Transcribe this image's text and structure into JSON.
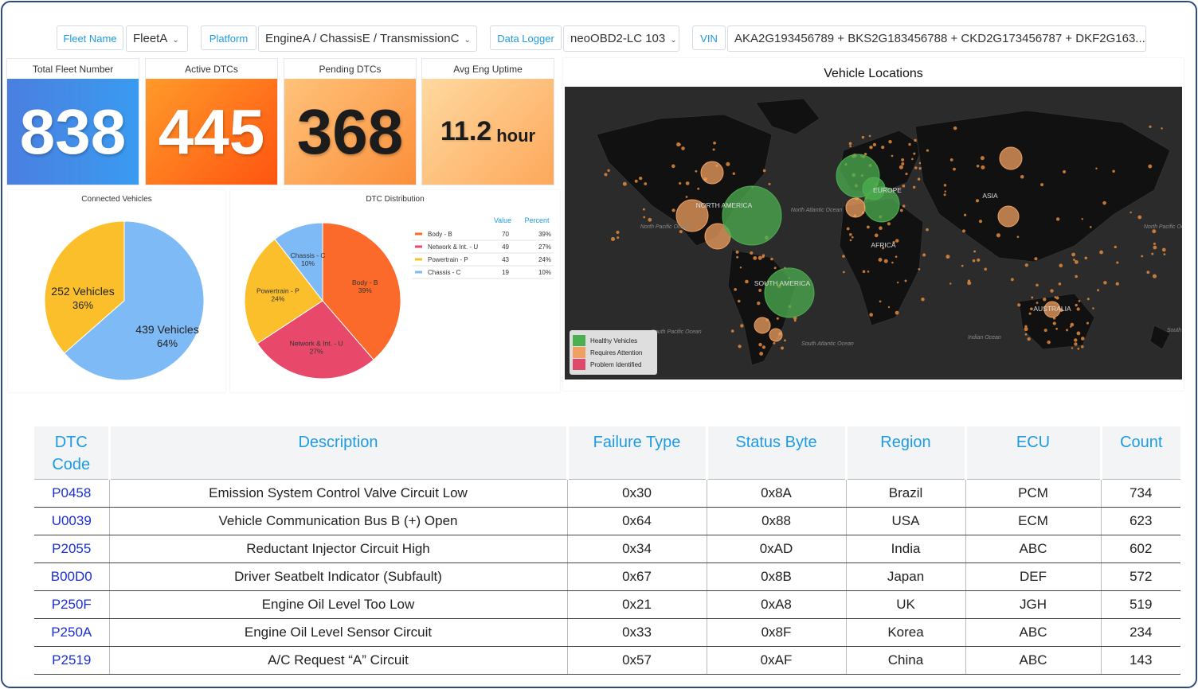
{
  "filters": [
    {
      "label": "Fleet Name",
      "value": "FleetA"
    },
    {
      "label": "Platform",
      "value": "EngineA / ChassisE / TransmissionC"
    },
    {
      "label": "Data Logger",
      "value": "neoOBD2-LC 103"
    },
    {
      "label": "VIN",
      "value": "AKA2G193456789 + BKS2G183456788 + CKD2G173456787 + DKF2G163..."
    }
  ],
  "kpis": {
    "total_fleet": {
      "title": "Total Fleet Number",
      "value": "838"
    },
    "active_dtcs": {
      "title": "Active DTCs",
      "value": "445"
    },
    "pending_dtcs": {
      "title": "Pending DTCs",
      "value": "368"
    },
    "avg_uptime": {
      "title": "Avg Eng Uptime",
      "value": "11.2",
      "unit": "hour"
    }
  },
  "colors": {
    "accent": "#1e9be0",
    "blue_card": "#3c8ce6",
    "orange_card": "#ff6f1a",
    "peach_card": "#fdb56a",
    "light_card": "#ffd08a",
    "healthy": "#4caf50",
    "attention": "#f0a060",
    "problem": "#e04a6a"
  },
  "connected_vehicles": {
    "title": "Connected Vehicles",
    "chart_data": {
      "type": "pie",
      "slices": [
        {
          "label": "252 Vehicles",
          "value": 252,
          "percent": "36%",
          "color": "#fbbf2b"
        },
        {
          "label": "439 Vehicles",
          "value": 439,
          "percent": "64%",
          "color": "#7ebaf5"
        }
      ]
    }
  },
  "dtc_distribution": {
    "title": "DTC Distribution",
    "legend_header": {
      "value": "Value",
      "percent": "Percent"
    },
    "chart_data": {
      "type": "pie",
      "slices": [
        {
          "name": "Body - B",
          "label": "Body - B",
          "value": 70,
          "percent": "39%",
          "color": "#fb6a2a"
        },
        {
          "name": "Network & Int. - U",
          "label": "Network & Int. - U",
          "value": 49,
          "percent": "27%",
          "color": "#e8486a"
        },
        {
          "name": "Powertrain - P",
          "label": "Powertrain - P",
          "value": 43,
          "percent": "24%",
          "color": "#fbbf2b"
        },
        {
          "name": "Chassis - C",
          "label": "Chassis - C",
          "value": 19,
          "percent": "10%",
          "color": "#7ebaf5"
        }
      ]
    }
  },
  "map": {
    "title": "Vehicle Locations",
    "continents": [
      "NORTH AMERICA",
      "EUROPE",
      "ASIA",
      "AFRICA",
      "SOUTH AMERICA",
      "AUSTRALIA"
    ],
    "oceans": [
      "North Pacific Ocean",
      "North Atlantic Ocean",
      "North Pacific Ocean",
      "South Pacific Ocean",
      "South Atlantic Ocean",
      "Indian Ocean",
      "South"
    ],
    "legend": [
      {
        "label": "Healthy Vehicles",
        "color": "#4caf50"
      },
      {
        "label": "Requires Attention",
        "color": "#f0a060"
      },
      {
        "label": "Problem Identified",
        "color": "#e04a6a"
      }
    ]
  },
  "table": {
    "headers": [
      "DTC Code",
      "Description",
      "Failure Type",
      "Status Byte",
      "Region",
      "ECU",
      "Count"
    ],
    "rows": [
      [
        "P0458",
        "Emission System Control Valve Circuit Low",
        "0x30",
        "0x8A",
        "Brazil",
        "PCM",
        "734"
      ],
      [
        "U0039",
        "Vehicle Communication Bus B (+) Open",
        "0x64",
        "0x88",
        "USA",
        "ECM",
        "623"
      ],
      [
        "P2055",
        "Reductant Injector Circuit High",
        "0x34",
        "0xAD",
        "India",
        "ABC",
        "602"
      ],
      [
        "B00D0",
        "Driver Seatbelt Indicator (Subfault)",
        "0x67",
        "0x8B",
        "Japan",
        "DEF",
        "572"
      ],
      [
        "P250F",
        "Engine Oil Level Too Low",
        "0x21",
        "0xA8",
        "UK",
        "JGH",
        "519"
      ],
      [
        "P250A",
        "Engine Oil Level Sensor Circuit",
        "0x33",
        "0x8F",
        "Korea",
        "ABC",
        "234"
      ],
      [
        "P2519",
        "A/C Request “A” Circuit",
        "0x57",
        "0xAF",
        "China",
        "ABC",
        "143"
      ]
    ]
  }
}
